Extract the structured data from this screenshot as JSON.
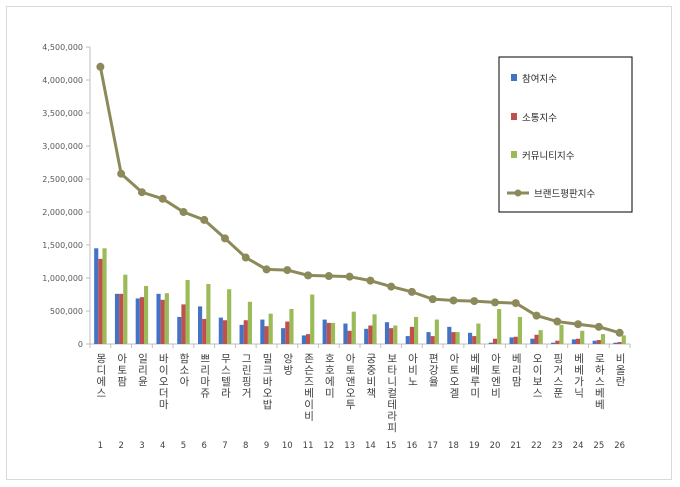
{
  "chart_data": {
    "type": "bar",
    "title": "",
    "xlabel": "",
    "ylabel": "",
    "ylim": [
      0,
      4500000
    ],
    "yticks": [
      "0",
      "500,000",
      "1,000,000",
      "1,500,000",
      "2,000,000",
      "2,500,000",
      "3,000,000",
      "3,500,000",
      "4,000,000",
      "4,500,000"
    ],
    "grid": false,
    "legend_position": "top-right",
    "categories": [
      "몽디에스",
      "아토팜",
      "일리윤",
      "바이오더마",
      "함소아",
      "쁘리마쥬",
      "무스텔라",
      "그린핑거",
      "밀크바오밥",
      "앙방",
      "존슨즈베이비",
      "호호에미",
      "아토앤오투",
      "궁중비책",
      "보타니컬테라피",
      "아비노",
      "편강율",
      "아토오겔",
      "베베루미",
      "아토엔비",
      "베리맘",
      "오이보스",
      "핑거스푼",
      "베베가닉",
      "로하스베베",
      "비올란"
    ],
    "indices": [
      "1",
      "2",
      "3",
      "4",
      "5",
      "6",
      "7",
      "8",
      "9",
      "10",
      "11",
      "12",
      "13",
      "14",
      "15",
      "16",
      "17",
      "18",
      "19",
      "20",
      "21",
      "22",
      "23",
      "24",
      "25",
      "26"
    ],
    "series": [
      {
        "name": "참여지수",
        "kind": "bar",
        "color": "#4472c4",
        "values": [
          1450000,
          760000,
          690000,
          760000,
          410000,
          570000,
          400000,
          290000,
          370000,
          240000,
          130000,
          370000,
          310000,
          230000,
          330000,
          120000,
          180000,
          260000,
          170000,
          20000,
          100000,
          80000,
          20000,
          70000,
          50000,
          20000
        ]
      },
      {
        "name": "소통지수",
        "kind": "bar",
        "color": "#c0504d",
        "values": [
          1290000,
          760000,
          710000,
          670000,
          600000,
          380000,
          360000,
          360000,
          270000,
          340000,
          150000,
          320000,
          200000,
          280000,
          240000,
          260000,
          120000,
          180000,
          120000,
          80000,
          110000,
          140000,
          50000,
          80000,
          60000,
          30000
        ]
      },
      {
        "name": "커뮤니티지수",
        "kind": "bar",
        "color": "#9bbb59",
        "values": [
          1450000,
          1050000,
          880000,
          770000,
          970000,
          910000,
          830000,
          640000,
          460000,
          530000,
          750000,
          320000,
          490000,
          450000,
          280000,
          410000,
          370000,
          180000,
          310000,
          530000,
          410000,
          210000,
          290000,
          200000,
          150000,
          130000
        ]
      },
      {
        "name": "브랜드평판지수",
        "kind": "line",
        "color": "#8c8a5a",
        "values": [
          4200000,
          2580000,
          2300000,
          2200000,
          2000000,
          1880000,
          1600000,
          1310000,
          1130000,
          1120000,
          1040000,
          1030000,
          1020000,
          960000,
          870000,
          790000,
          680000,
          660000,
          650000,
          630000,
          620000,
          430000,
          340000,
          300000,
          260000,
          170000
        ]
      }
    ]
  }
}
